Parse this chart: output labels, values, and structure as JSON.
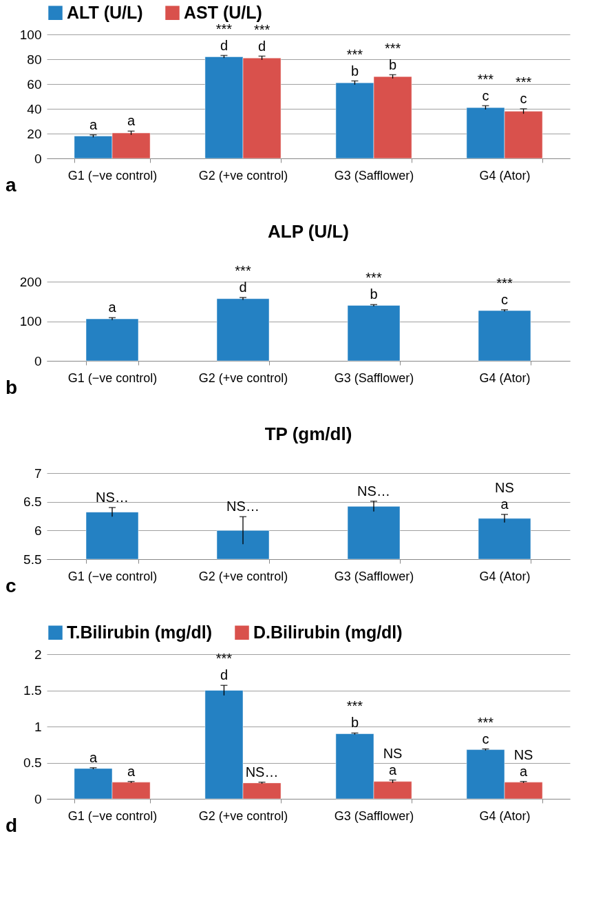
{
  "chart_data": [
    {
      "type": "bar",
      "categories": [
        "G1 (−ve control)",
        "G2 (+ve control)",
        "G3 (Safflower)",
        "G4 (Ator)"
      ],
      "series": [
        {
          "name": "ALT (U/L)",
          "color": "#2481c3",
          "values": [
            18,
            82,
            61,
            41
          ],
          "errors": [
            1,
            1,
            1.5,
            1.5
          ]
        },
        {
          "name": "AST (U/L)",
          "color": "#d9514c",
          "values": [
            20.5,
            81,
            66,
            38
          ],
          "errors": [
            1.5,
            1.5,
            1.5,
            2
          ]
        }
      ],
      "ylim": [
        0,
        100
      ],
      "yticks": [
        0,
        20,
        40,
        60,
        80,
        100
      ],
      "grid": "y",
      "legend": "top",
      "annotations": [
        {
          "text": "a",
          "x": "G1 (−ve control)",
          "y": 18
        },
        {
          "text": "a",
          "x": "G1 (−ve control)",
          "y": 20.5
        },
        {
          "text": "d",
          "x": "G2 (+ve control)",
          "y": 82
        },
        {
          "text": "***",
          "x": "G2 (+ve control)",
          "y": 82
        },
        {
          "text": "d",
          "x": "G2 (+ve control)",
          "y": 81
        },
        {
          "text": "***",
          "x": "G2 (+ve control)",
          "y": 81
        },
        {
          "text": "b",
          "x": "G3 (Safflower)",
          "y": 61
        },
        {
          "text": "***",
          "x": "G3 (Safflower)",
          "y": 61
        },
        {
          "text": "b",
          "x": "G3 (Safflower)",
          "y": 66
        },
        {
          "text": "***",
          "x": "G3 (Safflower)",
          "y": 66
        },
        {
          "text": "c",
          "x": "G4 (Ator)",
          "y": 41
        },
        {
          "text": "***",
          "x": "G4 (Ator)",
          "y": 41
        },
        {
          "text": "c",
          "x": "G4 (Ator)",
          "y": 38
        },
        {
          "text": "***",
          "x": "G4 (Ator)",
          "y": 38
        },
        "a"
      ]
    },
    {
      "type": "bar",
      "title": "ALP (U/L)",
      "categories": [
        "G1 (−ve control)",
        "G2 (+ve control)",
        "G3 (Safflower)",
        "G4 (Ator)"
      ],
      "series": [
        {
          "color": "#2481c3",
          "values": [
            106,
            157,
            140,
            127
          ],
          "errors": [
            3,
            3,
            2,
            2
          ]
        }
      ],
      "ylim": [
        0,
        200
      ],
      "yticks": [
        0,
        100,
        200
      ],
      "grid": "y",
      "annotations": [
        {
          "text": "a",
          "x": "G1 (−ve control)",
          "y": 106
        },
        {
          "text": "d",
          "x": "G2 (+ve control)",
          "y": 157
        },
        {
          "text": "***",
          "x": "G2 (+ve control)",
          "y": 157
        },
        {
          "text": "b",
          "x": "G3 (Safflower)",
          "y": 140
        },
        {
          "text": "***",
          "x": "G3 (Safflower)",
          "y": 140
        },
        {
          "text": "c",
          "x": "G4 (Ator)",
          "y": 127
        },
        {
          "text": "***",
          "x": "G4 (Ator)",
          "y": 127
        },
        "b"
      ]
    },
    {
      "type": "bar",
      "title": "TP (gm/dl)",
      "categories": [
        "G1 (−ve control)",
        "G2 (+ve control)",
        "G3 (Safflower)",
        "G4 (Ator)"
      ],
      "series": [
        {
          "color": "#2481c3",
          "values": [
            6.32,
            6.0,
            6.42,
            6.21
          ],
          "errors": [
            0.08,
            0.24,
            0.09,
            0.07
          ]
        }
      ],
      "ylim": [
        5.5,
        7
      ],
      "yticks": [
        5.5,
        6,
        6.5,
        7
      ],
      "grid": "y",
      "annotations": [
        {
          "text": "NS…",
          "x": "G1 (−ve control)",
          "y": 6.32
        },
        {
          "text": "NS…",
          "x": "G2 (+ve control)",
          "y": 6.0
        },
        {
          "text": "NS…",
          "x": "G3 (Safflower)",
          "y": 6.42
        },
        {
          "text": "a",
          "x": "G4 (Ator)",
          "y": 6.21
        },
        {
          "text": "NS",
          "x": "G4 (Ator)",
          "y": 6.21
        },
        "c"
      ]
    },
    {
      "type": "bar",
      "categories": [
        "G1 (−ve control)",
        "G2 (+ve control)",
        "G3 (Safflower)",
        "G4 (Ator)"
      ],
      "series": [
        {
          "name": "T.Bilirubin (mg/dl)",
          "color": "#2481c3",
          "values": [
            0.42,
            1.5,
            0.9,
            0.68
          ],
          "errors": [
            0.01,
            0.07,
            0.01,
            0.01
          ]
        },
        {
          "name": "D.Bilirubin (mg/dl)",
          "color": "#d9514c",
          "values": [
            0.23,
            0.22,
            0.24,
            0.23
          ],
          "errors": [
            0.01,
            0.01,
            0.02,
            0.01
          ]
        }
      ],
      "ylim": [
        0,
        2
      ],
      "yticks": [
        0,
        0.5,
        1,
        1.5,
        2
      ],
      "grid": "y",
      "legend": "top",
      "annotations": [
        {
          "text": "a",
          "x": "G1 (−ve control)",
          "y": 0.42
        },
        {
          "text": "a",
          "x": "G1 (−ve control)",
          "y": 0.23
        },
        {
          "text": "d",
          "x": "G2 (+ve control)",
          "y": 1.5
        },
        {
          "text": "***",
          "x": "G2 (+ve control)",
          "y": 1.5
        },
        {
          "text": "NS…",
          "x": "G2 (+ve control)",
          "y": 0.22
        },
        {
          "text": "b",
          "x": "G3 (Safflower)",
          "y": 0.9
        },
        {
          "text": "***",
          "x": "G3 (Safflower)",
          "y": 0.9
        },
        {
          "text": "a",
          "x": "G3 (Safflower)",
          "y": 0.24
        },
        {
          "text": "NS",
          "x": "G3 (Safflower)",
          "y": 0.24
        },
        {
          "text": "c",
          "x": "G4 (Ator)",
          "y": 0.68
        },
        {
          "text": "***",
          "x": "G4 (Ator)",
          "y": 0.68
        },
        {
          "text": "a",
          "x": "G4 (Ator)",
          "y": 0.23
        },
        {
          "text": "NS",
          "x": "G4 (Ator)",
          "y": 0.23
        },
        "d"
      ]
    }
  ]
}
